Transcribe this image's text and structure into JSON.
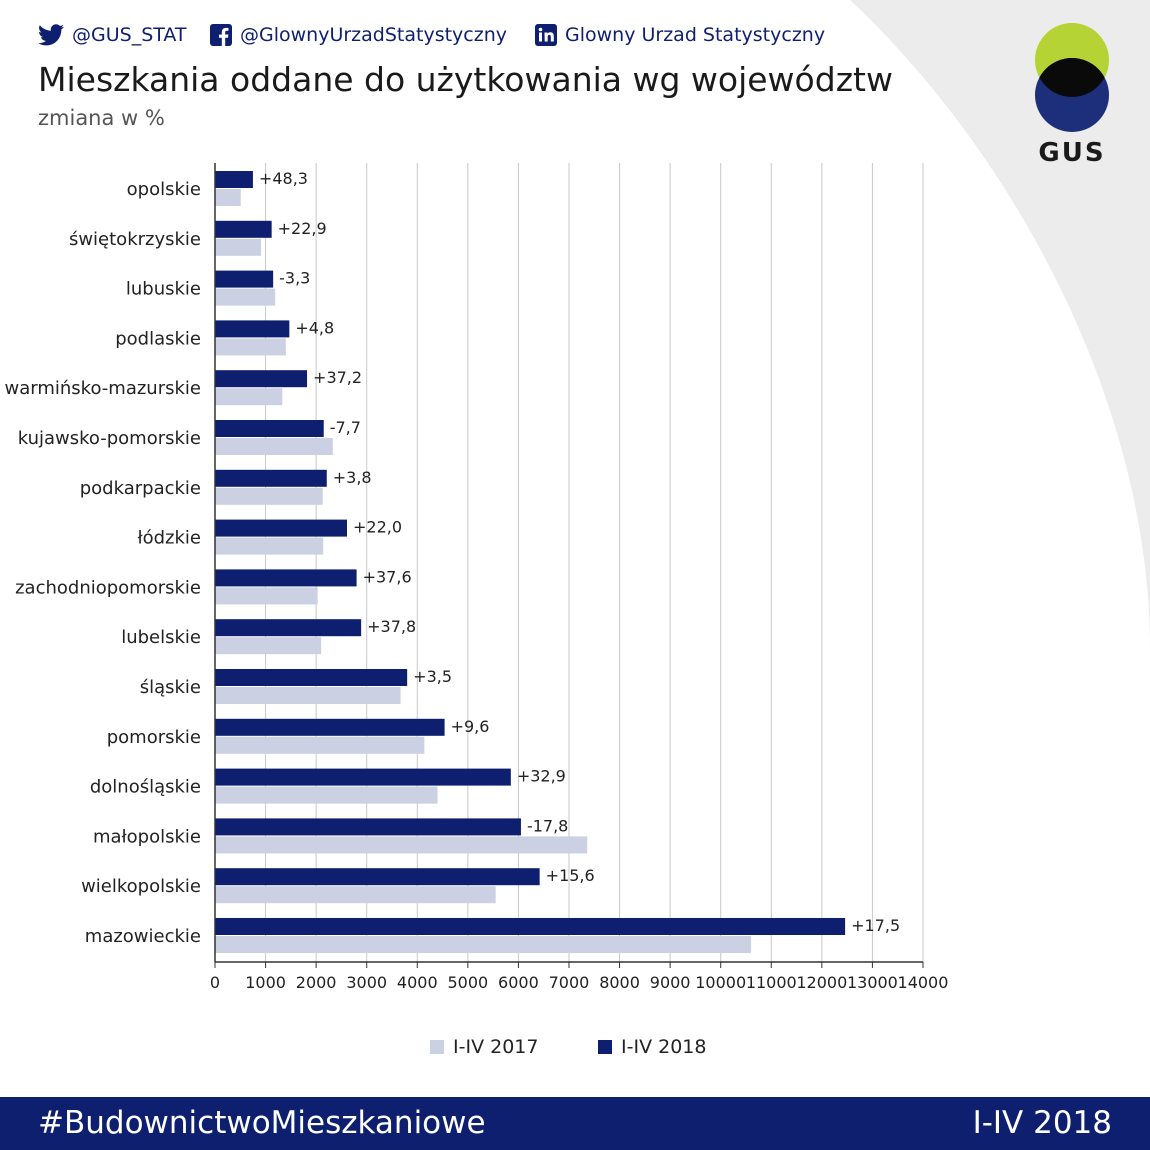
{
  "social": {
    "twitter": "@GUS_STAT",
    "facebook": "@GlownyUrzadStatystyczny",
    "linkedin": "Glowny Urzad Statystyczny"
  },
  "title": "Mieszkania oddane do użytkowania wg województw",
  "subtitle": "zmiana w %",
  "logo": {
    "text": "GUS"
  },
  "colors": {
    "series_2017": "#ccd0e3",
    "series_2018": "#0d1f6e",
    "logo_green": "#b5d334",
    "logo_blue": "#1d2f7a",
    "footer_bg": "#0d1f6e"
  },
  "chart_data": {
    "type": "bar",
    "orientation": "horizontal",
    "title": "Mieszkania oddane do użytkowania wg województw",
    "subtitle": "zmiana w %",
    "categories": [
      "opolskie",
      "świętokrzyskie",
      "lubuskie",
      "podlaskie",
      "warmińsko-mazurskie",
      "kujawsko-pomorskie",
      "podkarpackie",
      "łódzkie",
      "zachodniopomorskie",
      "lubelskie",
      "śląskie",
      "pomorskie",
      "dolnośląskie",
      "małopolskie",
      "wielkopolskie",
      "mazowieckie"
    ],
    "series": [
      {
        "name": "I-IV 2018",
        "values": [
          750,
          1120,
          1150,
          1470,
          1820,
          2150,
          2210,
          2610,
          2800,
          2890,
          3800,
          4540,
          5850,
          6050,
          6420,
          12460
        ]
      },
      {
        "name": "I-IV 2017",
        "values": [
          510,
          910,
          1190,
          1400,
          1330,
          2330,
          2130,
          2140,
          2030,
          2100,
          3670,
          4140,
          4400,
          7360,
          5550,
          10600
        ]
      }
    ],
    "data_labels": [
      "+48,3",
      "+22,9",
      "-3,3",
      "+4,8",
      "+37,2",
      "-7,7",
      "+3,8",
      "+22,0",
      "+37,6",
      "+37,8",
      "+3,5",
      "+9,6",
      "+32,9",
      "-17,8",
      "+15,6",
      "+17,5"
    ],
    "x_ticks": [
      "0",
      "1000",
      "2000",
      "3000",
      "4000",
      "5000",
      "6000",
      "7000",
      "8000",
      "9000",
      "10000",
      "11000",
      "12000",
      "13000",
      "14000"
    ],
    "xlim": [
      0,
      14000
    ],
    "grid": true,
    "legend": [
      "I-IV 2017",
      "I-IV 2018"
    ],
    "legend_position": "bottom"
  },
  "footer": {
    "hashtag": "#BudownictwoMieszkaniowe",
    "period": "I-IV 2018"
  }
}
